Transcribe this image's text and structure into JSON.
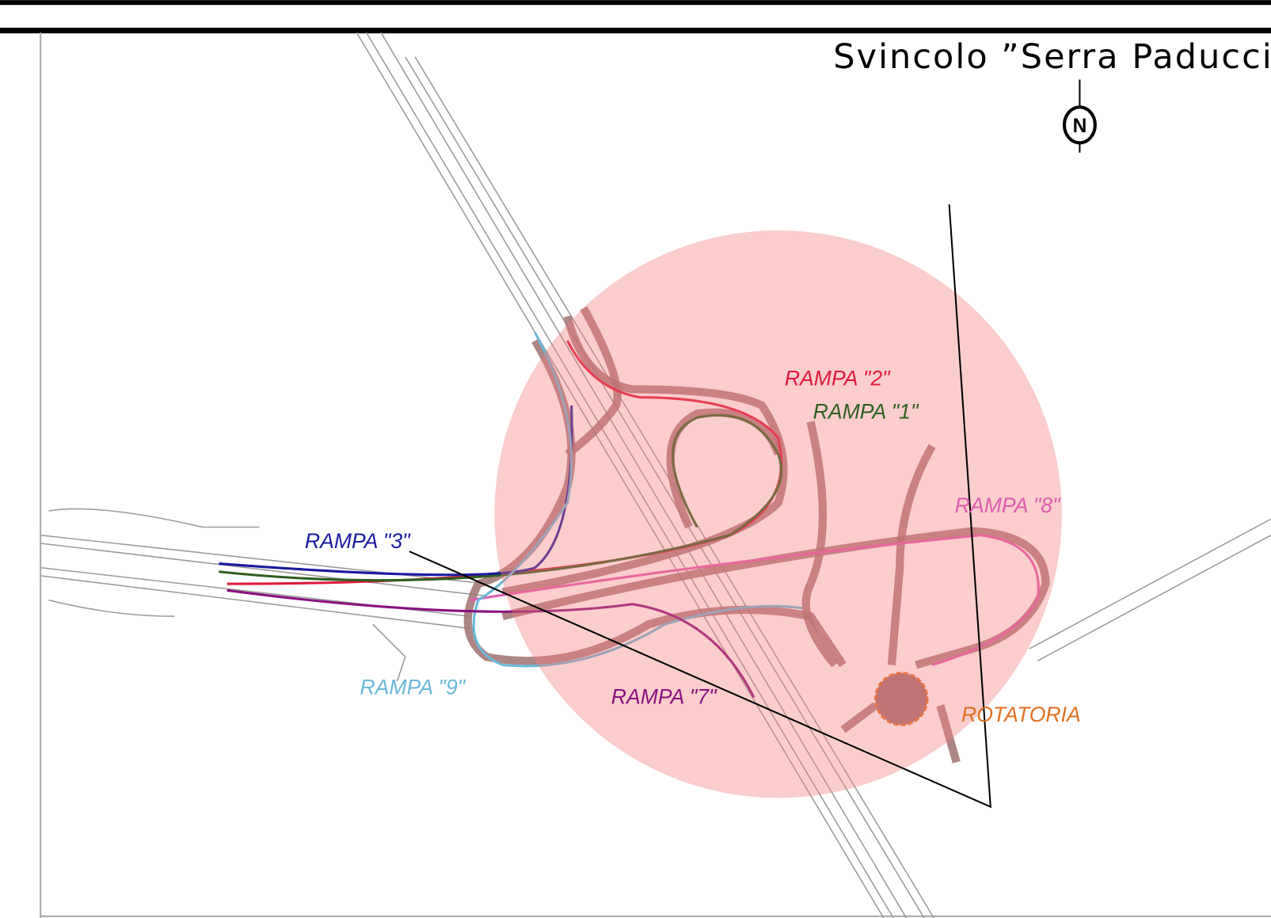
{
  "title": "Svincolo ”Serra Paducci",
  "north": "N",
  "labels": [
    {
      "text": "RAMPA \"2\"",
      "color": "#e0193c"
    },
    {
      "text": "RAMPA \"1\"",
      "color": "#2f5f1f"
    },
    {
      "text": "RAMPA \"8\"",
      "color": "#e05bb0"
    },
    {
      "text": "RAMPA \"3\"",
      "color": "#1a1aa0"
    },
    {
      "text": "RAMPA \"9\"",
      "color": "#6ab8d8"
    },
    {
      "text": "RAMPA \"7\"",
      "color": "#8a1080"
    },
    {
      "text": "ROTATORIA",
      "color": "#e07020"
    }
  ]
}
